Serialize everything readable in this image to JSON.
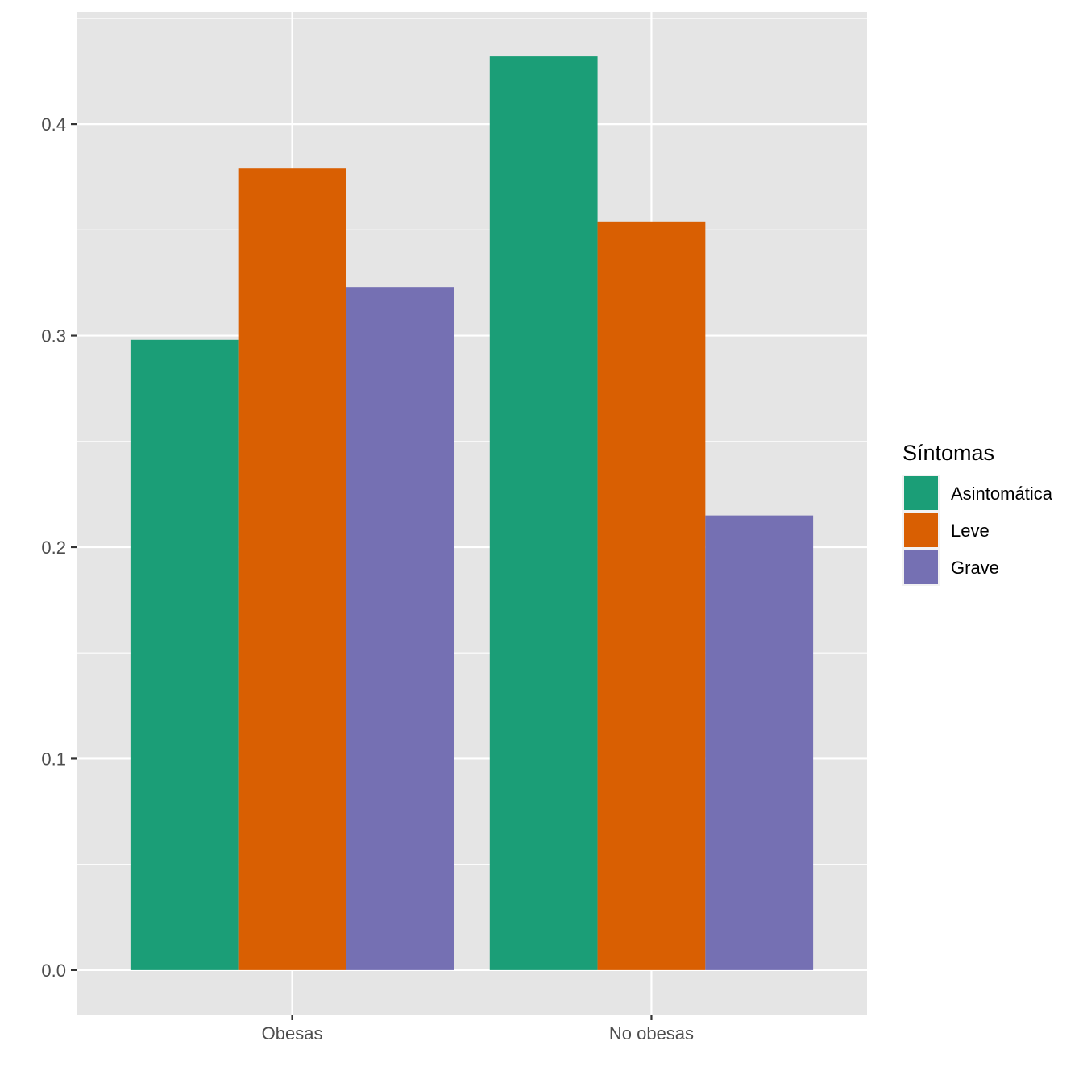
{
  "chart_data": {
    "type": "bar",
    "categories": [
      "Obesas",
      "No obesas"
    ],
    "series": [
      {
        "name": "Asintomática",
        "color": "#1b9e77",
        "values": [
          0.298,
          0.432
        ]
      },
      {
        "name": "Leve",
        "color": "#d95f02",
        "values": [
          0.379,
          0.354
        ]
      },
      {
        "name": "Grave",
        "color": "#7570b3",
        "values": [
          0.323,
          0.215
        ]
      }
    ],
    "ylim": [
      -0.021,
      0.453
    ],
    "yticks": [
      0.0,
      0.1,
      0.2,
      0.3,
      0.4
    ],
    "ytick_labels": [
      "0.0",
      "0.1",
      "0.2",
      "0.3",
      "0.4"
    ],
    "grid": true,
    "legend": {
      "title": "Síntomas",
      "position": "right"
    },
    "colors": {
      "panel_background": "#e5e5e5",
      "grid": "#ffffff",
      "tick_text": "#4d4d4d"
    }
  }
}
